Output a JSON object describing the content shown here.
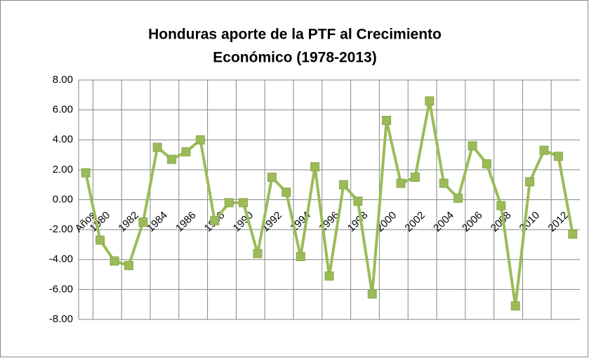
{
  "chart_data": {
    "type": "line",
    "title": [
      "Honduras aporte de la PTF al Crecimiento",
      "Económico (1978-2013)"
    ],
    "categories": [
      "Años",
      "1980",
      null,
      "1982",
      null,
      "1984",
      null,
      "1986",
      null,
      "1988",
      null,
      "1990",
      null,
      "1992",
      null,
      "1994",
      null,
      "1996",
      null,
      "1998",
      null,
      "2000",
      null,
      "2002",
      null,
      "2004",
      null,
      "2006",
      null,
      "2008",
      null,
      "2010",
      null,
      "2012",
      null
    ],
    "values": [
      1.8,
      -2.7,
      -4.1,
      -4.4,
      -1.5,
      3.5,
      2.7,
      3.2,
      4.0,
      -1.4,
      -0.2,
      -0.2,
      -3.6,
      1.5,
      0.5,
      -3.8,
      2.2,
      -5.1,
      1.0,
      -0.1,
      -6.3,
      5.3,
      1.1,
      1.5,
      6.6,
      1.1,
      0.1,
      3.6,
      2.4,
      -0.4,
      -7.1,
      1.2,
      3.3,
      2.9,
      -2.3
    ],
    "color": "#9bbb59",
    "ylim": [
      -8,
      8
    ],
    "yticks": [
      {
        "value": -8,
        "label": "-8.00"
      },
      {
        "value": -6,
        "label": "-6.00"
      },
      {
        "value": -4,
        "label": "-4.00"
      },
      {
        "value": -2,
        "label": "-2.00"
      },
      {
        "value": 0,
        "label": "0.00"
      },
      {
        "value": 2,
        "label": "2.00"
      },
      {
        "value": 4,
        "label": "4.00"
      },
      {
        "value": 6,
        "label": "6.00"
      },
      {
        "value": 8,
        "label": "8.00"
      }
    ],
    "grid": true
  }
}
